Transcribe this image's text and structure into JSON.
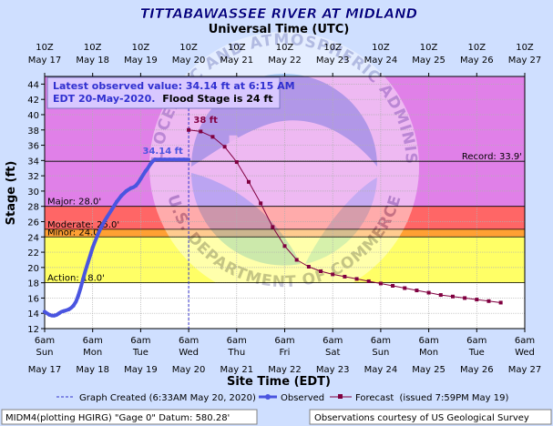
{
  "chart_data": {
    "type": "line",
    "title": "TITTABAWASSEE RIVER AT MIDLAND",
    "top_axis_title": "Universal Time (UTC)",
    "bottom_axis_title": "Site Time (EDT)",
    "ylabel": "Stage (ft)",
    "ylim": [
      12,
      45
    ],
    "y_ticks": [
      12,
      14,
      16,
      18,
      20,
      22,
      24,
      26,
      28,
      30,
      32,
      34,
      36,
      38,
      40,
      42,
      44
    ],
    "grid": true,
    "x_range_days": [
      "May 17",
      "May 27"
    ],
    "top_ticks": [
      {
        "time": "10Z",
        "date": "May 17"
      },
      {
        "time": "10Z",
        "date": "May 18"
      },
      {
        "time": "10Z",
        "date": "May 19"
      },
      {
        "time": "10Z",
        "date": "May 20"
      },
      {
        "time": "10Z",
        "date": "May 21"
      },
      {
        "time": "10Z",
        "date": "May 22"
      },
      {
        "time": "10Z",
        "date": "May 23"
      },
      {
        "time": "10Z",
        "date": "May 24"
      },
      {
        "time": "10Z",
        "date": "May 25"
      },
      {
        "time": "10Z",
        "date": "May 26"
      },
      {
        "time": "10Z",
        "date": "May 27"
      }
    ],
    "bottom_ticks": [
      {
        "time": "6am",
        "day": "Sun",
        "date": "May 17"
      },
      {
        "time": "6am",
        "day": "Mon",
        "date": "May 18"
      },
      {
        "time": "6am",
        "day": "Tue",
        "date": "May 19"
      },
      {
        "time": "6am",
        "day": "Wed",
        "date": "May 20"
      },
      {
        "time": "6am",
        "day": "Thu",
        "date": "May 21"
      },
      {
        "time": "6am",
        "day": "Fri",
        "date": "May 22"
      },
      {
        "time": "6am",
        "day": "Sat",
        "date": "May 23"
      },
      {
        "time": "6am",
        "day": "Sun",
        "date": "May 24"
      },
      {
        "time": "6am",
        "day": "Mon",
        "date": "May 25"
      },
      {
        "time": "6am",
        "day": "Tue",
        "date": "May 26"
      },
      {
        "time": "6am",
        "day": "Wed",
        "date": "May 27"
      }
    ],
    "flood_categories": [
      {
        "name": "Action",
        "label": "Action: 18.0'",
        "from": 12,
        "to": 18,
        "color": "#ffffff"
      },
      {
        "name": "Minor",
        "label": "Minor: 24.0'",
        "from": 18,
        "to": 24,
        "color": "#ffff66"
      },
      {
        "name": "Moderate",
        "label": "Moderate: 25.0'",
        "from": 24,
        "to": 25,
        "color": "#ffa033"
      },
      {
        "name": "Major",
        "label": "Major: 28.0'",
        "from": 25,
        "to": 28,
        "color": "#ff6666"
      },
      {
        "name": "Above Major",
        "label": "",
        "from": 28,
        "to": 45,
        "color": "#e080e8"
      }
    ],
    "reference_lines": [
      {
        "label": "Record: 33.9'",
        "value": 33.9
      },
      {
        "label": "Major: 28.0'",
        "value": 28.0
      },
      {
        "label": "Moderate: 25.0'",
        "value": 25.0
      },
      {
        "label": "Minor: 24.0'",
        "value": 24.0
      },
      {
        "label": "Action: 18.0'",
        "value": 18.0
      }
    ],
    "series": [
      {
        "name": "Observed",
        "color": "#4a55e0",
        "x_days": [
          0.0,
          0.05,
          0.1,
          0.15,
          0.2,
          0.25,
          0.3,
          0.35,
          0.4,
          0.45,
          0.5,
          0.55,
          0.6,
          0.65,
          0.7,
          0.75,
          0.8,
          0.85,
          0.9,
          0.95,
          1.0,
          1.05,
          1.1,
          1.15,
          1.2,
          1.25,
          1.3,
          1.35,
          1.4,
          1.45,
          1.5,
          1.55,
          1.6,
          1.65,
          1.7,
          1.75,
          1.8,
          1.85,
          1.9,
          1.95,
          2.0,
          2.05,
          2.1,
          2.15,
          2.2,
          2.25,
          2.3,
          2.35,
          2.4,
          2.45,
          2.5,
          2.55,
          2.6,
          2.65,
          2.7,
          2.75,
          2.8,
          2.85,
          2.9,
          2.95,
          3.0
        ],
        "values": [
          14.2,
          14.0,
          13.8,
          13.7,
          13.7,
          13.8,
          14.0,
          14.2,
          14.3,
          14.4,
          14.5,
          14.7,
          15.0,
          15.5,
          16.3,
          17.3,
          18.5,
          19.6,
          20.6,
          21.6,
          22.6,
          23.4,
          24.2,
          24.9,
          25.5,
          26.1,
          26.6,
          27.1,
          27.6,
          28.1,
          28.6,
          29.0,
          29.4,
          29.7,
          30.0,
          30.2,
          30.4,
          30.5,
          30.7,
          31.1,
          31.6,
          32.1,
          32.6,
          33.0,
          33.5,
          33.9,
          34.14,
          34.14,
          34.14,
          34.14,
          34.14,
          34.14,
          34.14,
          34.14,
          34.14,
          34.14,
          34.14,
          34.14,
          34.14,
          34.14,
          34.14
        ]
      },
      {
        "name": "Forecast",
        "issued": "(issued 7:59PM May 19)",
        "color": "#800040",
        "x_days": [
          3.0,
          3.25,
          3.5,
          3.75,
          4.0,
          4.25,
          4.5,
          4.75,
          5.0,
          5.25,
          5.5,
          5.75,
          6.0,
          6.25,
          6.5,
          6.75,
          7.0,
          7.25,
          7.5,
          7.75,
          8.0,
          8.25,
          8.5,
          8.75,
          9.0,
          9.25,
          9.5
        ],
        "values": [
          38.0,
          37.8,
          37.1,
          35.8,
          33.8,
          31.2,
          28.4,
          25.3,
          22.8,
          21.0,
          20.1,
          19.5,
          19.1,
          18.8,
          18.5,
          18.2,
          17.9,
          17.6,
          17.3,
          17.0,
          16.7,
          16.4,
          16.2,
          16.0,
          15.8,
          15.6,
          15.4
        ]
      }
    ],
    "annotations": [
      {
        "text": "34.14 ft",
        "x_day": 2.88,
        "y": 34.14
      },
      {
        "text": "38 ft",
        "x_day": 3.1,
        "y": 38.0
      }
    ],
    "legend": {
      "graph_created": "Graph Created (6:33AM May 20, 2020)",
      "observed": "Observed",
      "forecast": "Forecast",
      "forecast_issued": "(issued 7:59PM May 19)"
    },
    "info_box": {
      "line1": "Latest observed value: 34.14 ft at 6:15 AM",
      "line2a": "EDT 20-May-2020.",
      "line2b": "Flood Stage is 24 ft"
    },
    "footer": {
      "left": "MIDM4(plotting HGIRG) \"Gage 0\" Datum: 580.28'",
      "right": "Observations courtesy of US Geological Survey"
    },
    "watermark": {
      "top_text": "NATIONAL OCEANIC AND ATMOSPHERIC ADMINISTRATION",
      "bottom_text": "U.S. DEPARTMENT OF COMMERCE",
      "center_text": "NOAA"
    }
  }
}
